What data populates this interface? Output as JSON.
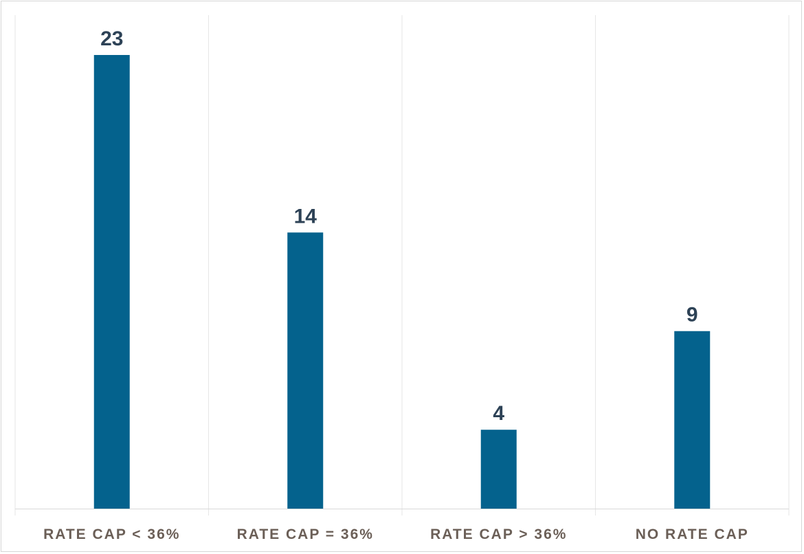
{
  "chart_data": {
    "type": "bar",
    "categories": [
      "RATE CAP < 36%",
      "RATE CAP = 36%",
      "RATE CAP > 36%",
      "NO RATE CAP"
    ],
    "values": [
      23,
      14,
      4,
      9
    ],
    "data_labels": [
      "23",
      "14",
      "4",
      "9"
    ],
    "title": "",
    "xlabel": "",
    "ylabel": "",
    "ylim": [
      0,
      23
    ],
    "grid": "vertical category separators",
    "legend": "none",
    "bar_color": "#04628d",
    "label_color": "#2d4256",
    "category_color": "#6b5f57"
  }
}
